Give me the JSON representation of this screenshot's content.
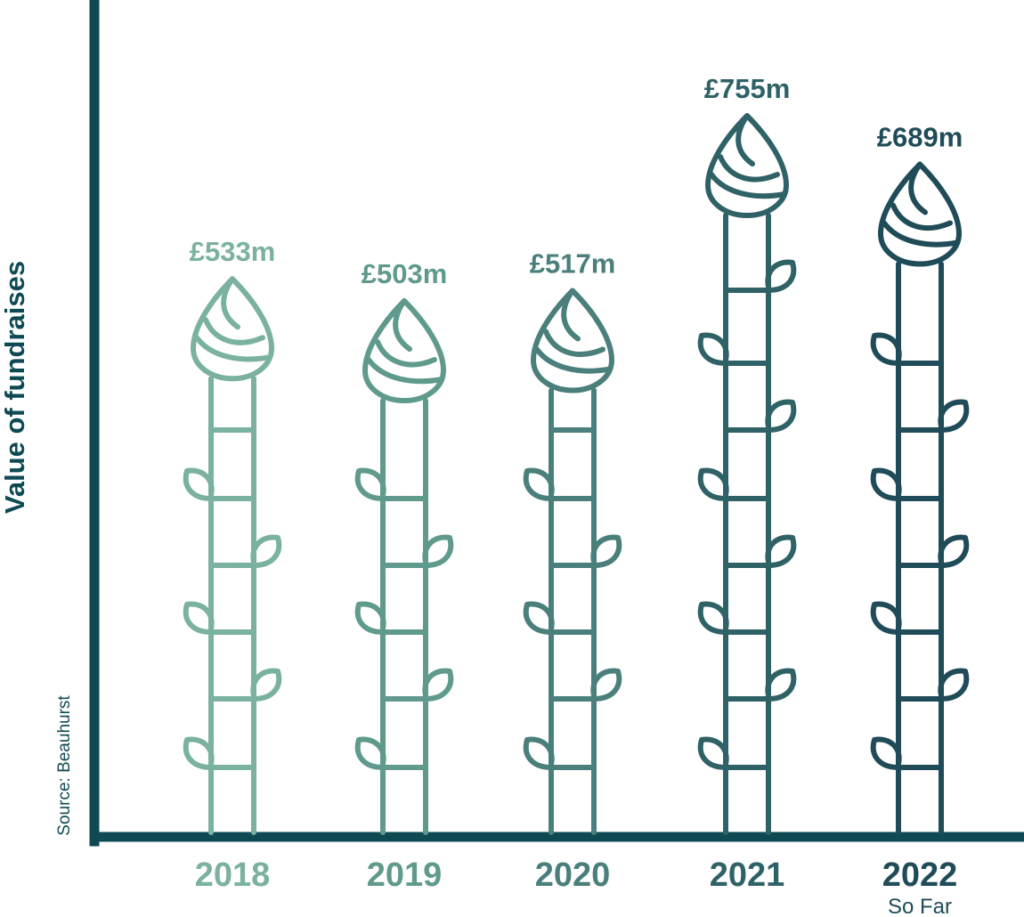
{
  "chart_data": {
    "type": "bar",
    "ylabel": "Value of fundraises",
    "xlabel": "",
    "source": "Source: Beauhurst",
    "categories": [
      "2018",
      "2019",
      "2020",
      "2021",
      "2022"
    ],
    "sublabels": [
      "",
      "",
      "",
      "",
      "So Far"
    ],
    "values": [
      533,
      503,
      517,
      755,
      689
    ],
    "value_labels": [
      "£533m",
      "£503m",
      "£517m",
      "£755m",
      "£689m"
    ],
    "unit": "£m",
    "colors": [
      "#7ab1a0",
      "#5f9a8d",
      "#4a7f7b",
      "#2f6266",
      "#1f4c58"
    ],
    "axis_color": "#0f4a54",
    "grid": false,
    "legend": "none"
  }
}
